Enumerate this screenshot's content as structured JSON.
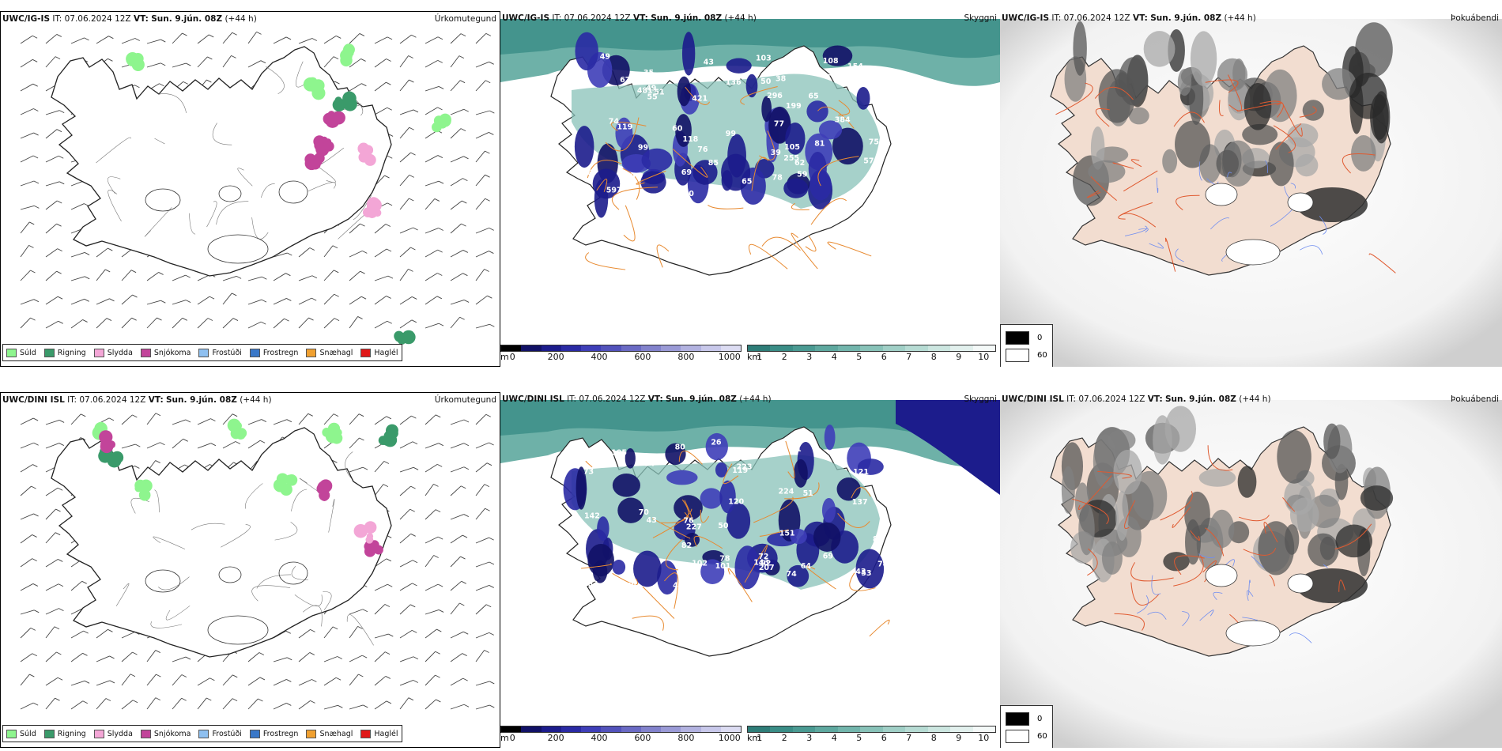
{
  "rows": [
    {
      "model": "UWC/IG-IS",
      "it_label": "IT:",
      "it_value": "07.06.2024 12Z",
      "vt_label": "VT:",
      "vt_value": "Sun. 9.jún. 08Z",
      "lead": "(+44 h)",
      "cloud_labels": [
        "50",
        "78",
        "49",
        "38",
        "85",
        "69",
        "51",
        "65",
        "55",
        "59",
        "60",
        "35",
        "43",
        "49",
        "39",
        "77",
        "49",
        "52",
        "65",
        "154",
        "412",
        "597",
        "296",
        "384",
        "754",
        "255",
        "90",
        "62",
        "76",
        "57",
        "105",
        "74",
        "82",
        "99",
        "119",
        "81",
        "103",
        "108",
        "199",
        "481",
        "99",
        "87",
        "118",
        "136",
        "67",
        "421"
      ]
    },
    {
      "model": "UWC/DINI ISL",
      "it_label": "IT:",
      "it_value": "07.06.2024 12Z",
      "vt_label": "VT:",
      "vt_value": "Sun. 9.jún. 08Z",
      "lead": "(+44 h)",
      "cloud_labels": [
        "69",
        "53",
        "40",
        "50",
        "26",
        "43",
        "74",
        "72",
        "67",
        "64",
        "51",
        "73",
        "63",
        "54",
        "74",
        "70",
        "76",
        "71",
        "143",
        "78",
        "69",
        "119",
        "121",
        "102",
        "80",
        "73",
        "83",
        "82",
        "105",
        "101",
        "137",
        "223",
        "89",
        "227",
        "207",
        "92",
        "142",
        "224",
        "151",
        "43",
        "57",
        "120"
      ]
    }
  ],
  "panels": {
    "precip": {
      "name": "Úrkomutegund"
    },
    "cloud": {
      "name": "Skyggni"
    },
    "fog": {
      "name": "Þokuábendi"
    }
  },
  "precip_legend": [
    {
      "label": "Súld",
      "color": "#8ef58e"
    },
    {
      "label": "Rigning",
      "color": "#3a9a6a"
    },
    {
      "label": "Slydda",
      "color": "#f3a6d6"
    },
    {
      "label": "Snjókoma",
      "color": "#c2449a"
    },
    {
      "label": "Frostúði",
      "color": "#8fc0f0"
    },
    {
      "label": "Frostregn",
      "color": "#3a78c8"
    },
    {
      "label": "Snæhagl",
      "color": "#f0a030"
    },
    {
      "label": "Haglél",
      "color": "#e01818"
    }
  ],
  "ceiling_scale": {
    "unit": "m",
    "ticks": [
      "0",
      "200",
      "400",
      "600",
      "800",
      "1000"
    ],
    "colors": [
      "#000000",
      "#111166",
      "#1c1c8c",
      "#2a2aa4",
      "#3e3eb8",
      "#5252bb",
      "#6a6ac4",
      "#8282cc",
      "#9a9ad6",
      "#b2b2e0",
      "#c8c8ea",
      "#dcdcf2"
    ]
  },
  "visibility_scale": {
    "unit": "km",
    "ticks": [
      "1",
      "2",
      "3",
      "4",
      "5",
      "6",
      "7",
      "8",
      "9",
      "10"
    ],
    "colors": [
      "#2e7d78",
      "#3a8d86",
      "#4a9a92",
      "#5ea89f",
      "#72b5ac",
      "#88c2b8",
      "#a0cfc6",
      "#b6dbd3",
      "#cce6e0",
      "#e2f0ed",
      "#f4f9f8"
    ]
  },
  "fog_legend": [
    {
      "label": "0",
      "color": "#000000"
    },
    {
      "label": "60",
      "color": "#ffffff"
    }
  ]
}
